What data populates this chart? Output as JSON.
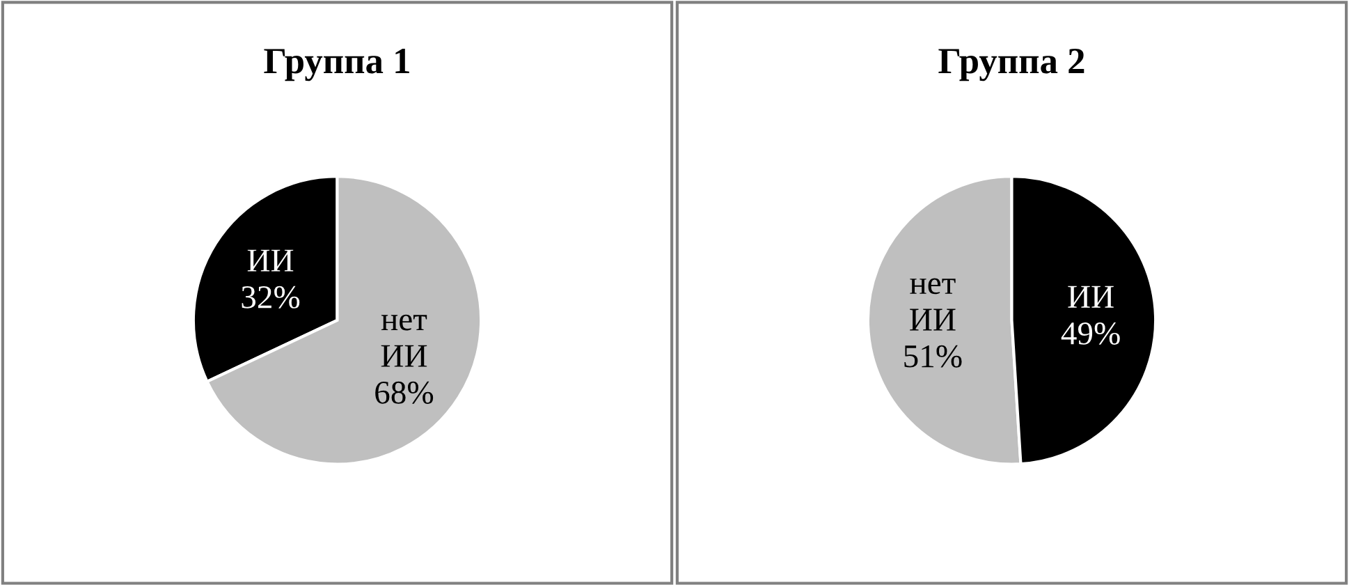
{
  "chart_data": [
    {
      "type": "pie",
      "title": "Группа 1",
      "categories": [
        "ИИ",
        "нет ИИ"
      ],
      "values": [
        32,
        68
      ],
      "value_labels": [
        "32%",
        "68%"
      ],
      "colors": [
        "#000000",
        "#bfbfbf"
      ]
    },
    {
      "type": "pie",
      "title": "Группа 2",
      "categories": [
        "нет ИИ",
        "ИИ"
      ],
      "values": [
        51,
        49
      ],
      "value_labels": [
        "51%",
        "49%"
      ],
      "colors": [
        "#bfbfbf",
        "#000000"
      ]
    }
  ]
}
